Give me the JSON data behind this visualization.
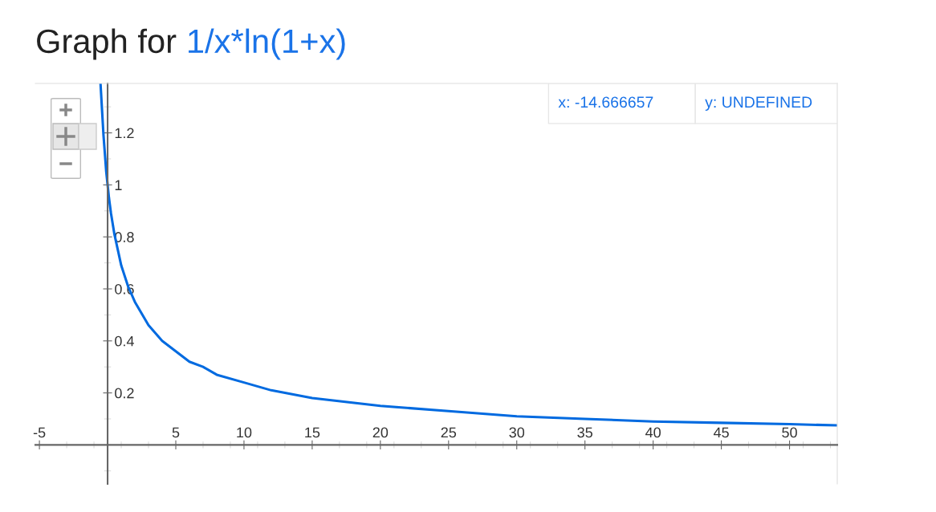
{
  "chart_data": {
    "type": "line",
    "title": "Graph for",
    "subtitle": "1/x*ln(1+x)",
    "x": [
      -0.52,
      -0.4,
      -0.3,
      -0.2,
      -0.1,
      0.1,
      0.25,
      0.5,
      0.75,
      1,
      1.5,
      2,
      3,
      4,
      5,
      6,
      7,
      8,
      10,
      12,
      15,
      20,
      25,
      30,
      35,
      40,
      45,
      50,
      53.5
    ],
    "series": [
      {
        "color": "#006ae0",
        "values": [
          1.39,
          1.28,
          1.19,
          1.12,
          1.05,
          0.95,
          0.89,
          0.81,
          0.75,
          0.69,
          0.61,
          0.55,
          0.46,
          0.4,
          0.36,
          0.32,
          0.3,
          0.27,
          0.24,
          0.21,
          0.18,
          0.15,
          0.13,
          0.11,
          0.1,
          0.09,
          0.085,
          0.08,
          0.075
        ]
      }
    ],
    "xlim": [
      -5.3,
      53.5
    ],
    "ylim": [
      -0.15,
      1.39
    ],
    "xticks": [
      -5,
      5,
      10,
      15,
      20,
      25,
      30,
      35,
      40,
      45,
      50
    ],
    "yticks": [
      0.2,
      0.4,
      0.6,
      0.8,
      1,
      1.2
    ],
    "annotations": [
      "x: -14.666657",
      "y: UNDEFINED"
    ],
    "grid": false,
    "legend": false,
    "marker": "none",
    "line_style": "solid"
  }
}
